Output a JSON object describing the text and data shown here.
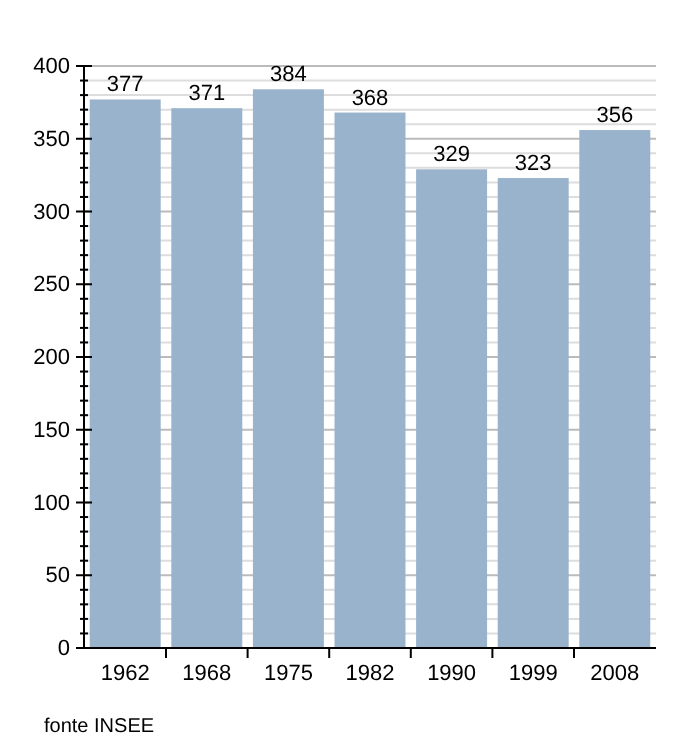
{
  "chart_data": {
    "type": "bar",
    "categories": [
      "1962",
      "1968",
      "1975",
      "1982",
      "1990",
      "1999",
      "2008"
    ],
    "values": [
      377,
      371,
      384,
      368,
      329,
      323,
      356
    ],
    "color": "#9ab3cc",
    "data_labels": true,
    "grid": "y",
    "ylim": [
      0,
      400
    ],
    "yticks": [
      0,
      {
        "value": 10,
        "label": null
      },
      {
        "value": 20,
        "label": null
      },
      {
        "value": 30,
        "label": null
      },
      {
        "value": 40,
        "label": null
      },
      50,
      {
        "value": 60,
        "label": null
      },
      {
        "value": 70,
        "label": null
      },
      {
        "value": 80,
        "label": null
      },
      {
        "value": 90,
        "label": null
      },
      100,
      {
        "value": 110,
        "label": null
      },
      {
        "value": 120,
        "label": null
      },
      {
        "value": 130,
        "label": null
      },
      {
        "value": 140,
        "label": null
      },
      150,
      {
        "value": 160,
        "label": null
      },
      {
        "value": 170,
        "label": null
      },
      {
        "value": 180,
        "label": null
      },
      {
        "value": 190,
        "label": null
      },
      200,
      {
        "value": 210,
        "label": null
      },
      {
        "value": 220,
        "label": null
      },
      {
        "value": 230,
        "label": null
      },
      {
        "value": 240,
        "label": null
      },
      250,
      {
        "value": 260,
        "label": null
      },
      {
        "value": 270,
        "label": null
      },
      {
        "value": 280,
        "label": null
      },
      {
        "value": 290,
        "label": null
      },
      300,
      {
        "value": 310,
        "label": null
      },
      {
        "value": 320,
        "label": null
      },
      {
        "value": 330,
        "label": null
      },
      {
        "value": 340,
        "label": null
      },
      350,
      {
        "value": 360,
        "label": null
      },
      {
        "value": 370,
        "label": null
      },
      {
        "value": 380,
        "label": null
      },
      {
        "value": 390,
        "label": null
      },
      400
    ],
    "annotations": [
      "fonte INSEE"
    ]
  }
}
